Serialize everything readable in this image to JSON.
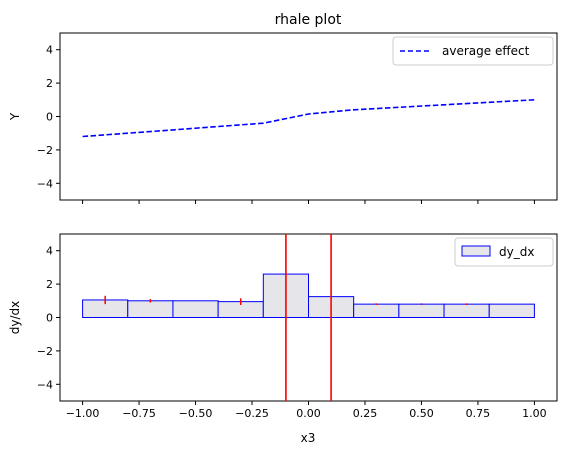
{
  "chart_data": [
    {
      "type": "line",
      "title": "rhale plot",
      "xlabel": "",
      "ylabel": "Y",
      "xlim": [
        -1.1,
        1.1
      ],
      "ylim": [
        -5,
        5
      ],
      "x_ticks": [
        -1.0,
        -0.75,
        -0.5,
        -0.25,
        0.0,
        0.25,
        0.5,
        0.75,
        1.0
      ],
      "y_ticks": [
        -4,
        -2,
        0,
        2,
        4
      ],
      "y_tick_labels": [
        "−4",
        "−2",
        "0",
        "2",
        "4"
      ],
      "legend_position": "top-right",
      "series": [
        {
          "name": "average effect",
          "style": "dashed",
          "color": "#0000ff",
          "x": [
            -1.0,
            -0.8,
            -0.6,
            -0.4,
            -0.2,
            0.0,
            0.2,
            0.4,
            0.6,
            0.8,
            1.0
          ],
          "y": [
            -1.2,
            -1.0,
            -0.8,
            -0.6,
            -0.4,
            0.15,
            0.4,
            0.55,
            0.7,
            0.85,
            1.0
          ]
        }
      ]
    },
    {
      "type": "bar",
      "title": "",
      "xlabel": "x3",
      "ylabel": "dy/dx",
      "xlim": [
        -1.1,
        1.1
      ],
      "ylim": [
        -5,
        5
      ],
      "x_ticks": [
        -1.0,
        -0.75,
        -0.5,
        -0.25,
        0.0,
        0.25,
        0.5,
        0.75,
        1.0
      ],
      "x_tick_labels": [
        "−1.00",
        "−0.75",
        "−0.50",
        "−0.25",
        "0.00",
        "0.25",
        "0.50",
        "0.75",
        "1.00"
      ],
      "y_ticks": [
        -4,
        -2,
        0,
        2,
        4
      ],
      "y_tick_labels": [
        "−4",
        "−2",
        "0",
        "2",
        "4"
      ],
      "legend_position": "top-right",
      "series": [
        {
          "name": "dy_dx",
          "fill": "#e6e6ea",
          "edge": "#0000ff",
          "bins": [
            {
              "x0": -1.0,
              "x1": -0.8,
              "value": 1.05,
              "err": 0.25
            },
            {
              "x0": -0.8,
              "x1": -0.6,
              "value": 1.0,
              "err": 0.1
            },
            {
              "x0": -0.6,
              "x1": -0.4,
              "value": 1.0,
              "err": 0.0
            },
            {
              "x0": -0.4,
              "x1": -0.2,
              "value": 0.95,
              "err": 0.2
            },
            {
              "x0": -0.2,
              "x1": 0.0,
              "value": 2.6,
              "err": 0.0
            },
            {
              "x0": 0.0,
              "x1": 0.2,
              "value": 1.25,
              "err": 0.0
            },
            {
              "x0": 0.2,
              "x1": 0.4,
              "value": 0.8,
              "err": 0.05
            },
            {
              "x0": 0.4,
              "x1": 0.6,
              "value": 0.8,
              "err": 0.05
            },
            {
              "x0": 0.6,
              "x1": 0.8,
              "value": 0.8,
              "err": 0.05
            },
            {
              "x0": 0.8,
              "x1": 1.0,
              "value": 0.8,
              "err": 0.0
            }
          ]
        }
      ],
      "error_color": "#ff0000",
      "vlines": {
        "x": [
          -0.1,
          0.1
        ],
        "color": "#ff0000"
      }
    }
  ]
}
